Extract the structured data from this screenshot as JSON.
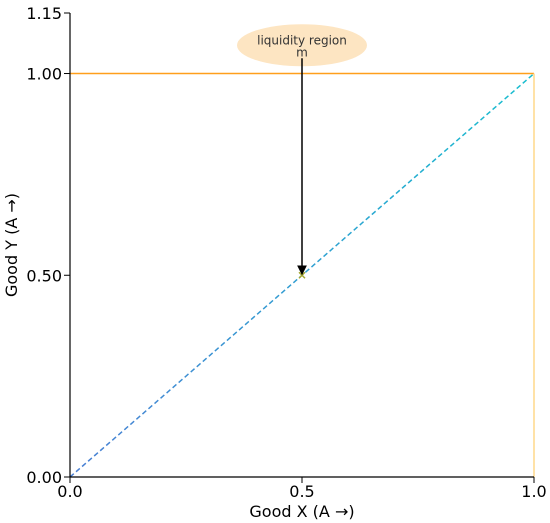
{
  "chart_data": {
    "type": "line",
    "title": "",
    "xlabel": "Good X (A →)",
    "ylabel": "Good Y (A →)",
    "xlim": [
      0,
      1.0
    ],
    "ylim": [
      0,
      1.15
    ],
    "x_ticks": [
      {
        "value": 0,
        "label": "0.0"
      },
      {
        "value": 0.5,
        "label": "0.5"
      },
      {
        "value": 1.0,
        "label": "1.0"
      }
    ],
    "y_ticks": [
      {
        "value": 0,
        "label": "0.00"
      },
      {
        "value": 0.5,
        "label": "0.50"
      },
      {
        "value": 1.0,
        "label": "1.00"
      },
      {
        "value": 1.15,
        "label": "1.15"
      }
    ],
    "grid": false,
    "series": [
      {
        "style": "dashed",
        "color_from": "#4a7fd4",
        "color_to": "#17becf",
        "points": [
          [
            0,
            0
          ],
          [
            1,
            1
          ]
        ]
      },
      {
        "style": "solid",
        "color": "#ff9f1c",
        "points": [
          [
            0,
            1
          ],
          [
            1,
            1
          ]
        ]
      },
      {
        "style": "solid",
        "color": "#ffd98a",
        "points": [
          [
            1,
            0
          ],
          [
            1,
            1
          ]
        ]
      }
    ],
    "markers": [
      {
        "x": 0.5,
        "y": 0.5,
        "symbol": "x",
        "color": "#a6a832"
      }
    ],
    "annotations": [
      {
        "text": "liquidity region",
        "subtext": "m",
        "x": 0.5,
        "y": 1.07,
        "box_color": "#fde5c2",
        "arrow_to": [
          0.5,
          0.5
        ],
        "arrow_color": "#000000"
      }
    ]
  }
}
